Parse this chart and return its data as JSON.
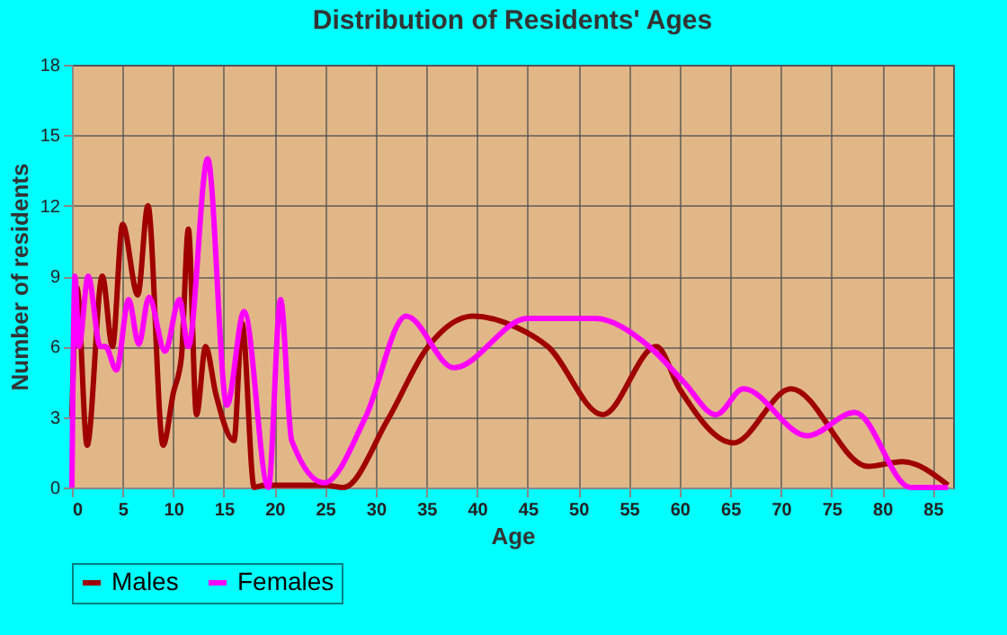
{
  "chart_data": {
    "type": "line",
    "title": "Distribution of Residents' Ages",
    "xlabel": "Age",
    "ylabel": "Number of residents",
    "xlim": [
      0,
      87
    ],
    "xticks": [
      0,
      5,
      10,
      15,
      20,
      25,
      30,
      35,
      40,
      45,
      50,
      55,
      60,
      65,
      70,
      75,
      80,
      85
    ],
    "ylim": [
      0,
      18
    ],
    "yticks": [
      0,
      3,
      6,
      9,
      12,
      15,
      18
    ],
    "grid": true,
    "legend": "bottom",
    "marker": "none",
    "line_style": "solid",
    "series": [
      {
        "name": "Males",
        "color": "#a00000",
        "x": [
          0,
          0.5,
          1.5,
          3,
          4,
          5,
          6.5,
          7.5,
          9,
          10,
          10.8,
          11.5,
          12.3,
          13.2,
          14.2,
          16,
          16.8,
          18,
          19,
          25,
          26.8,
          31.2,
          35,
          39.6,
          44,
          47,
          52.4,
          57.7,
          60,
          65.3,
          71,
          78.6,
          82,
          86.5
        ],
        "values": [
          3,
          8.5,
          1.8,
          9,
          6,
          11.2,
          8.2,
          12,
          1.8,
          4,
          5.5,
          11,
          3.1,
          6,
          4,
          2,
          7,
          0,
          0.1,
          0.1,
          0,
          2.9,
          5.9,
          7.3,
          6.8,
          6,
          3.1,
          6,
          4.2,
          1.9,
          4.2,
          0.9,
          1.1,
          0.1
        ]
      },
      {
        "name": "Females",
        "color": "#ff00ff",
        "x": [
          0,
          0.3,
          0.7,
          1.6,
          2.8,
          3.3,
          4.4,
          5.6,
          6.6,
          7.6,
          9.2,
          10.6,
          11.5,
          13.4,
          15.3,
          17,
          19.4,
          20.6,
          21.7,
          24.9,
          29,
          33,
          37.7,
          45,
          51.6,
          57,
          60.4,
          63.6,
          66.3,
          72.6,
          77.3,
          82.8,
          86.5
        ],
        "values": [
          0,
          9,
          6,
          9,
          6,
          6,
          5,
          8,
          6.1,
          8.1,
          5.8,
          8,
          6,
          14,
          3.5,
          7.5,
          0,
          8,
          2,
          0.2,
          3,
          7.3,
          5.1,
          7.2,
          7.2,
          6,
          4.5,
          3.1,
          4.2,
          2.2,
          3.2,
          0,
          0
        ]
      }
    ]
  }
}
